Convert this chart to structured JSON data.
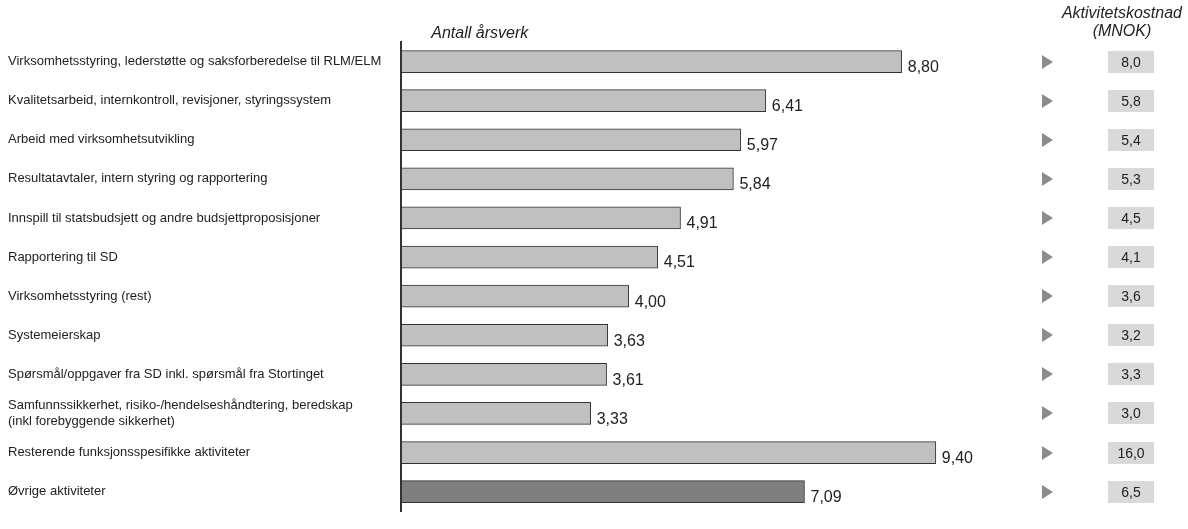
{
  "chart_data": [
    {
      "type": "bar",
      "orientation": "horizontal",
      "title": "Antall årsverk",
      "categories": [
        "Virksomhetsstyring, lederstøtte og saksforberedelse til RLM/ELM",
        "Kvalitetsarbeid, internkontroll, revisjoner, styringssystem",
        "Arbeid med virksomhetsutvikling",
        "Resultatavtaler, intern styring og rapportering",
        "Innspill til statsbudsjett og andre budsjettproposisjoner",
        "Rapportering til SD",
        "Virksomhetsstyring (rest)",
        "Systemeierskap",
        "Spørsmål/oppgaver fra SD inkl. spørsmål fra Stortinget",
        "Samfunnssikkerhet, risiko-/hendelseshåndtering, beredskap\n(inkl forebyggende sikkerhet)",
        "Resterende funksjonsspesifikke aktiviteter",
        "Øvrige aktiviteter"
      ],
      "values": [
        8.8,
        6.41,
        5.97,
        5.84,
        4.91,
        4.51,
        4.0,
        3.63,
        3.61,
        3.33,
        9.4,
        7.09
      ],
      "value_labels": [
        "8,80",
        "6,41",
        "5,97",
        "5,84",
        "4,91",
        "4,51",
        "4,00",
        "3,63",
        "3,61",
        "3,33",
        "9,40",
        "7,09"
      ],
      "colors": [
        "#c0c0c0",
        "#c0c0c0",
        "#c0c0c0",
        "#c0c0c0",
        "#c0c0c0",
        "#c0c0c0",
        "#c0c0c0",
        "#c0c0c0",
        "#c0c0c0",
        "#c0c0c0",
        "#c0c0c0",
        "#7f7f7f"
      ],
      "grid": false,
      "legend": false,
      "tick_labels": "y"
    },
    {
      "type": "other",
      "title": "Aktivitetskostnad\n(MNOK)",
      "annotations": [
        "8,0",
        "5,8",
        "5,4",
        "5,3",
        "4,5",
        "4,1",
        "3,6",
        "3,2",
        "3,3",
        "3,0",
        "16,0",
        "6,5"
      ]
    }
  ]
}
